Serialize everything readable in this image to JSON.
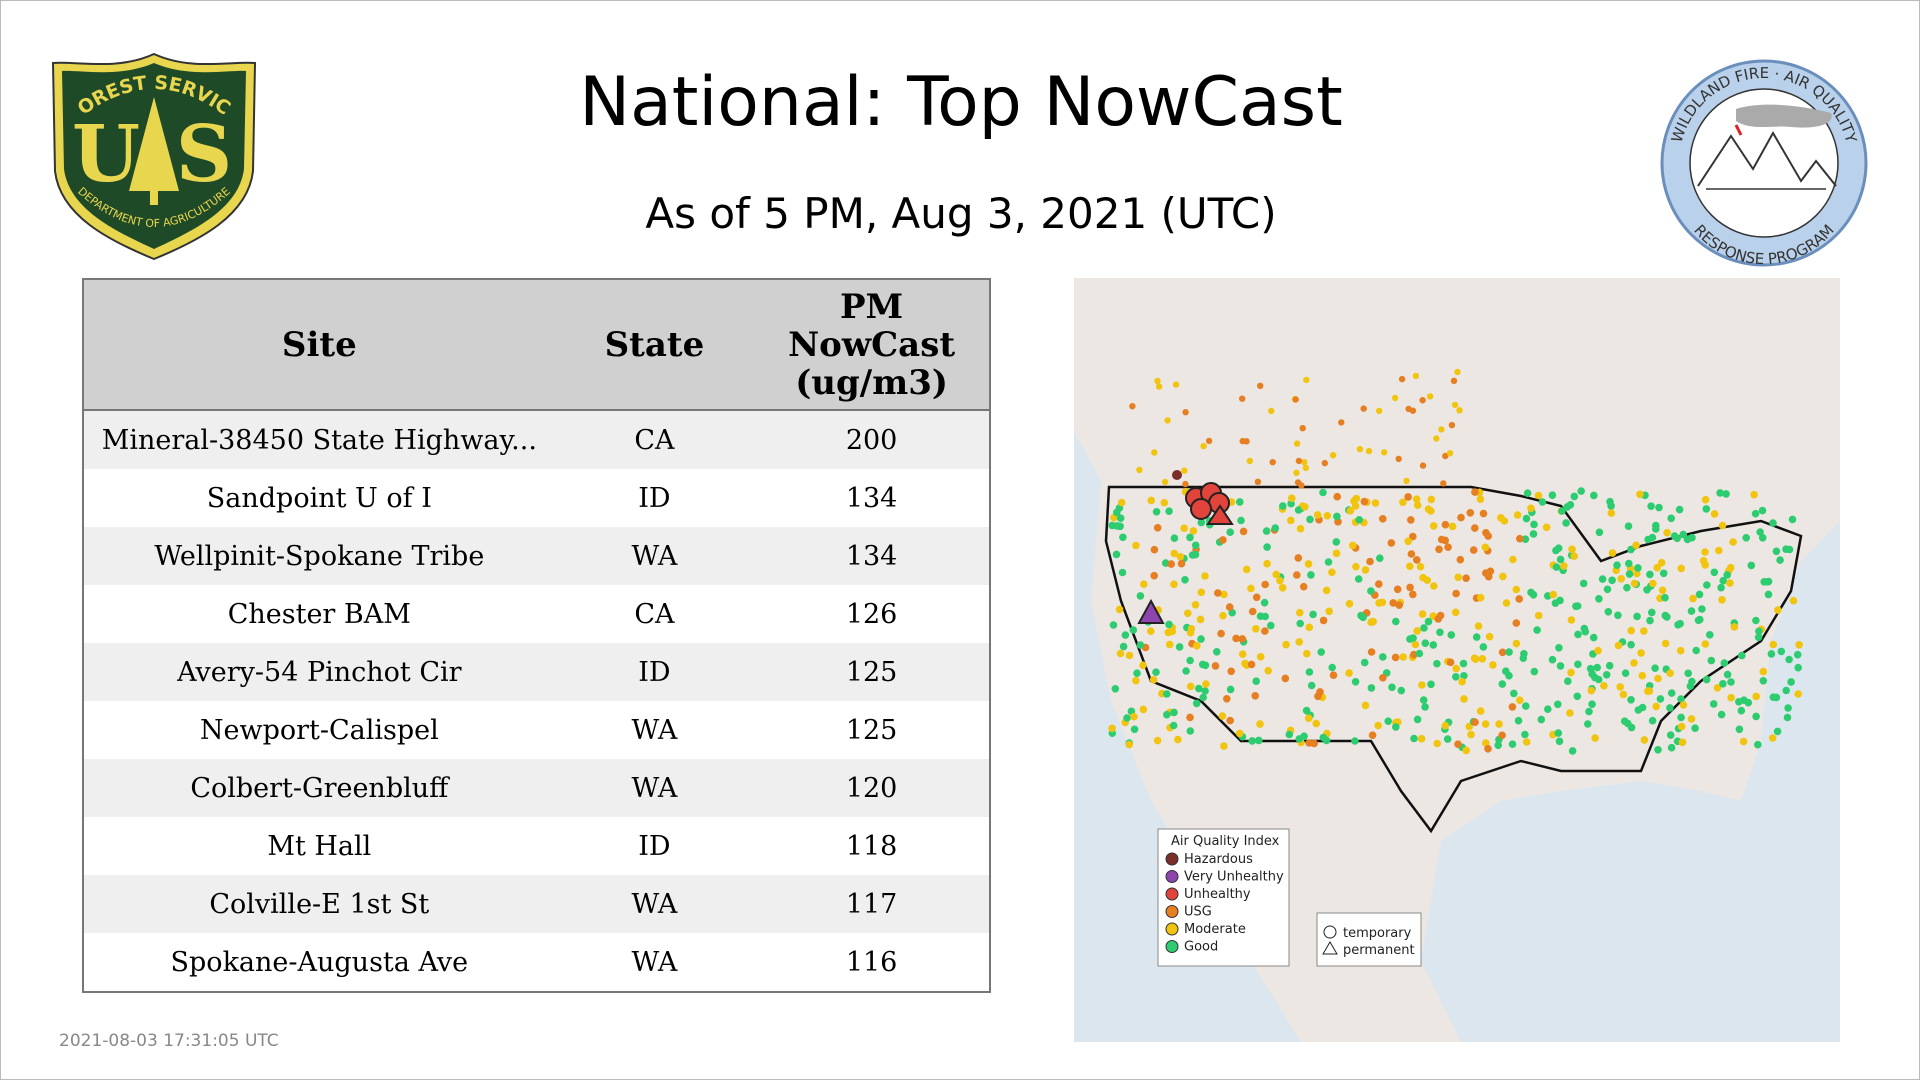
{
  "header": {
    "title": "National: Top NowCast",
    "subtitle": "As of  5 PM, Aug  3, 2021 (UTC)"
  },
  "logos": {
    "forest_service": {
      "top": "FOREST SERVICE",
      "left": "U",
      "right": "S",
      "bottom": "DEPARTMENT OF AGRICULTURE"
    },
    "wildland": {
      "top": "WILDLAND FIRE · AIR QUALITY",
      "bottom": "RESPONSE PROGRAM"
    }
  },
  "table": {
    "columns": [
      "Site",
      "State",
      "PM NowCast (ug/m3)"
    ],
    "rows": [
      [
        "Mineral-38450 State Highway...",
        "CA",
        200
      ],
      [
        "Sandpoint U of I",
        "ID",
        134
      ],
      [
        "Wellpinit-Spokane Tribe",
        "WA",
        134
      ],
      [
        "Chester BAM",
        "CA",
        126
      ],
      [
        "Avery-54 Pinchot Cir",
        "ID",
        125
      ],
      [
        "Newport-Calispel",
        "WA",
        125
      ],
      [
        "Colbert-Greenbluff",
        "WA",
        120
      ],
      [
        "Mt Hall",
        "ID",
        118
      ],
      [
        "Colville-E 1st St",
        "WA",
        117
      ],
      [
        "Spokane-Augusta Ave",
        "WA",
        116
      ]
    ]
  },
  "map": {
    "legend": {
      "title": "Air Quality Index",
      "items": [
        {
          "label": "Hazardous",
          "color": "#7a2e2a"
        },
        {
          "label": "Very Unhealthy",
          "color": "#8e44ad"
        },
        {
          "label": "Unhealthy",
          "color": "#e0443a"
        },
        {
          "label": "USG",
          "color": "#e67e22"
        },
        {
          "label": "Moderate",
          "color": "#f1c40f"
        },
        {
          "label": "Good",
          "color": "#2ecc71"
        }
      ]
    },
    "shape_legend": [
      "temporary",
      "permanent"
    ]
  },
  "timestamp": "2021-08-03 17:31:05 UTC"
}
